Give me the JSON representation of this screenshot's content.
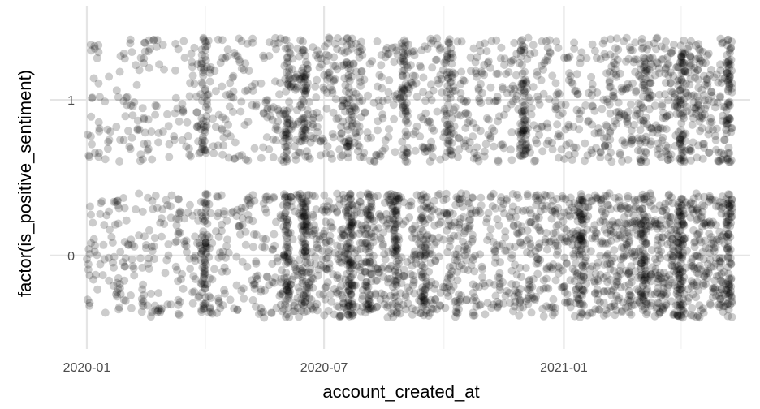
{
  "chart_data": {
    "type": "scatter",
    "title": "",
    "xlabel": "account_created_at",
    "ylabel": "factor(is_positive_sentiment)",
    "x_axis": {
      "scale": "date",
      "range": [
        "2019-12-04",
        "2021-05-24"
      ],
      "ticks": [
        "2020-01-01",
        "2020-07-01",
        "2021-01-01"
      ],
      "tick_labels": [
        "2020-01",
        "2020-07",
        "2021-01"
      ],
      "minor_ticks": [
        "2020-04-01",
        "2020-10-01",
        "2021-04-01"
      ]
    },
    "y_axis": {
      "scale": "discrete",
      "categories": [
        "0",
        "1"
      ],
      "range": [
        -0.6,
        1.6
      ],
      "jitter": 0.4
    },
    "grid": true,
    "point_style": {
      "color": "#000000",
      "opacity": 0.2,
      "size": 5
    },
    "series": [
      {
        "category": "1",
        "x_range": [
          "2020-01-01",
          "2021-05-10"
        ],
        "point_count": 1800,
        "density_by_month": {
          "2020-01": 0.55,
          "2020-02": 0.6,
          "2020-03": 0.65,
          "2020-04": 0.7,
          "2020-05": 0.6,
          "2020-06": 0.9,
          "2020-07": 0.95,
          "2020-08": 0.85,
          "2020-09": 0.9,
          "2020-10": 1.0,
          "2020-11": 1.0,
          "2020-12": 1.0,
          "2021-01": 0.95,
          "2021-02": 1.05,
          "2021-03": 1.2,
          "2021-04": 1.35,
          "2021-05": 1.4
        },
        "dense_dates": [
          "2020-03-31",
          "2020-06-02",
          "2020-06-16",
          "2020-07-21",
          "2020-09-01",
          "2020-10-05",
          "2020-12-01",
          "2021-03-03",
          "2021-04-01",
          "2021-05-08"
        ]
      },
      {
        "category": "0",
        "x_range": [
          "2020-01-01",
          "2021-05-10"
        ],
        "point_count": 2600,
        "density_by_month": {
          "2020-01": 0.6,
          "2020-02": 0.65,
          "2020-03": 0.6,
          "2020-04": 0.7,
          "2020-05": 0.6,
          "2020-06": 1.2,
          "2020-07": 1.2,
          "2020-08": 1.15,
          "2020-09": 1.0,
          "2020-10": 0.9,
          "2020-11": 0.9,
          "2020-12": 1.1,
          "2021-01": 1.25,
          "2021-02": 1.3,
          "2021-03": 1.4,
          "2021-04": 1.5,
          "2021-05": 1.6
        },
        "dense_dates": [
          "2020-03-31",
          "2020-06-02",
          "2020-06-16",
          "2020-07-21",
          "2020-08-04",
          "2020-08-25",
          "2020-09-15",
          "2021-01-14",
          "2021-03-03",
          "2021-04-01",
          "2021-05-08"
        ]
      }
    ]
  }
}
